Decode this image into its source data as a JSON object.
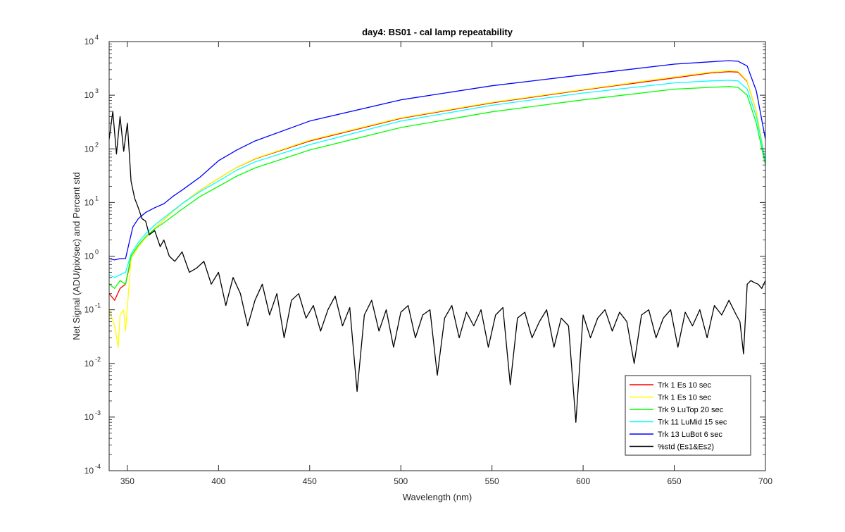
{
  "chart_data": {
    "type": "line",
    "title": "day4: BS01 - cal lamp repeatability",
    "xlabel": "Wavelength (nm)",
    "ylabel": "Net Signal (ADU/pix/sec)  and Percent std",
    "xlim": [
      340,
      700
    ],
    "ylim": [
      0.0001,
      10000
    ],
    "yscale": "log",
    "grid": false,
    "legend_position": "bottom-right",
    "x_ticks": [
      350,
      400,
      450,
      500,
      550,
      600,
      650,
      700
    ],
    "x_tick_labels": [
      "350",
      "400",
      "450",
      "500",
      "550",
      "600",
      "650",
      "700"
    ],
    "y_ticks": [
      {
        "value": 0.0001,
        "base": "10",
        "exp": "-4"
      },
      {
        "value": 0.001,
        "base": "10",
        "exp": "-3"
      },
      {
        "value": 0.01,
        "base": "10",
        "exp": "-2"
      },
      {
        "value": 0.1,
        "base": "10",
        "exp": "-1"
      },
      {
        "value": 1,
        "base": "10",
        "exp": "0"
      },
      {
        "value": 10,
        "base": "10",
        "exp": "1"
      },
      {
        "value": 100,
        "base": "10",
        "exp": "2"
      },
      {
        "value": 1000,
        "base": "10",
        "exp": "3"
      },
      {
        "value": 10000,
        "base": "10",
        "exp": "4"
      }
    ],
    "series": [
      {
        "name": "Trk 1 Es 10 sec",
        "color": "#ff0000",
        "x": [
          340,
          343,
          346,
          349,
          352,
          356,
          360,
          365,
          370,
          375,
          380,
          390,
          400,
          410,
          420,
          450,
          500,
          550,
          600,
          650,
          670,
          680,
          685,
          690,
          695,
          700
        ],
        "y": [
          0.2,
          0.15,
          0.25,
          0.3,
          0.9,
          1.5,
          2.2,
          3.3,
          4.8,
          6.8,
          9.5,
          17,
          28,
          45,
          65,
          140,
          370,
          720,
          1250,
          2100,
          2600,
          2750,
          2700,
          1800,
          500,
          55
        ]
      },
      {
        "name": "Trk 1 Es 10 sec",
        "color": "#ffff00",
        "x": [
          340,
          343,
          345,
          346,
          348,
          349,
          352,
          356,
          360,
          365,
          370,
          375,
          380,
          390,
          400,
          410,
          420,
          450,
          500,
          550,
          600,
          650,
          670,
          680,
          685,
          690,
          695,
          700
        ],
        "y": [
          0.1,
          0.05,
          0.02,
          0.08,
          0.1,
          0.04,
          0.9,
          1.5,
          2.2,
          3.3,
          4.8,
          6.8,
          9.5,
          17,
          28,
          45,
          66,
          145,
          380,
          740,
          1280,
          2200,
          2700,
          2850,
          2800,
          1850,
          500,
          60
        ]
      },
      {
        "name": "Trk 9 LuTop 20 sec",
        "color": "#00ff00",
        "x": [
          340,
          343,
          346,
          349,
          352,
          356,
          360,
          365,
          370,
          375,
          380,
          390,
          400,
          410,
          420,
          450,
          500,
          550,
          600,
          650,
          670,
          680,
          685,
          690,
          695,
          700
        ],
        "y": [
          0.3,
          0.25,
          0.35,
          0.3,
          1.0,
          1.6,
          2.3,
          3.2,
          4.2,
          5.6,
          7.5,
          13,
          20,
          31,
          44,
          95,
          250,
          490,
          820,
          1300,
          1400,
          1450,
          1400,
          1000,
          300,
          50
        ]
      },
      {
        "name": "Trk 11 LuMid 15 sec",
        "color": "#00ffff",
        "x": [
          340,
          343,
          346,
          349,
          352,
          356,
          360,
          365,
          370,
          375,
          380,
          390,
          400,
          410,
          420,
          450,
          500,
          550,
          600,
          650,
          670,
          680,
          685,
          690,
          695,
          700
        ],
        "y": [
          0.45,
          0.4,
          0.45,
          0.5,
          1.1,
          1.8,
          2.6,
          3.8,
          5.2,
          7.0,
          9.5,
          16,
          25,
          40,
          57,
          120,
          330,
          650,
          1100,
          1700,
          1850,
          1900,
          1850,
          1300,
          400,
          60
        ]
      },
      {
        "name": "Trk 13 LuBot 6 sec",
        "color": "#0000ff",
        "x": [
          340,
          343,
          346,
          349,
          351,
          353,
          356,
          360,
          365,
          370,
          375,
          380,
          390,
          400,
          410,
          420,
          450,
          500,
          550,
          600,
          650,
          670,
          680,
          685,
          690,
          695,
          700
        ],
        "y": [
          0.9,
          0.85,
          0.9,
          0.9,
          1.8,
          3.5,
          5.0,
          6.5,
          8.0,
          9.5,
          13,
          17,
          30,
          60,
          95,
          140,
          330,
          820,
          1500,
          2400,
          3800,
          4200,
          4400,
          4300,
          3500,
          1200,
          150
        ]
      },
      {
        "name": "%std (Es1&Es2)",
        "color": "#000000",
        "x": [
          340,
          342,
          344,
          346,
          348,
          350,
          352,
          354,
          356,
          358,
          360,
          362,
          365,
          368,
          370,
          373,
          376,
          380,
          384,
          388,
          392,
          396,
          400,
          404,
          408,
          412,
          416,
          420,
          424,
          428,
          432,
          436,
          440,
          444,
          448,
          452,
          456,
          460,
          464,
          468,
          472,
          476,
          480,
          484,
          488,
          492,
          496,
          500,
          504,
          508,
          512,
          516,
          520,
          524,
          528,
          532,
          536,
          540,
          544,
          548,
          552,
          556,
          560,
          564,
          568,
          572,
          576,
          580,
          584,
          588,
          592,
          596,
          600,
          604,
          608,
          612,
          616,
          620,
          624,
          628,
          632,
          636,
          640,
          644,
          648,
          652,
          656,
          660,
          664,
          668,
          672,
          676,
          680,
          684,
          686,
          688,
          690,
          692,
          694,
          696,
          698,
          700
        ],
        "y": [
          150,
          500,
          80,
          400,
          90,
          300,
          25,
          12,
          8,
          5,
          4.5,
          2.5,
          3,
          1.5,
          2,
          1,
          0.8,
          1.2,
          0.5,
          0.6,
          0.8,
          0.3,
          0.5,
          0.12,
          0.4,
          0.2,
          0.05,
          0.15,
          0.3,
          0.08,
          0.2,
          0.03,
          0.15,
          0.2,
          0.07,
          0.12,
          0.04,
          0.1,
          0.18,
          0.05,
          0.11,
          0.003,
          0.08,
          0.15,
          0.04,
          0.1,
          0.02,
          0.09,
          0.12,
          0.03,
          0.08,
          0.1,
          0.006,
          0.07,
          0.12,
          0.03,
          0.09,
          0.05,
          0.1,
          0.02,
          0.08,
          0.11,
          0.004,
          0.07,
          0.09,
          0.03,
          0.06,
          0.1,
          0.02,
          0.07,
          0.05,
          0.0008,
          0.08,
          0.03,
          0.07,
          0.1,
          0.04,
          0.09,
          0.06,
          0.01,
          0.08,
          0.1,
          0.03,
          0.07,
          0.1,
          0.02,
          0.09,
          0.05,
          0.1,
          0.03,
          0.12,
          0.08,
          0.15,
          0.08,
          0.06,
          0.015,
          0.3,
          0.35,
          0.32,
          0.3,
          0.25,
          0.35
        ]
      }
    ]
  }
}
